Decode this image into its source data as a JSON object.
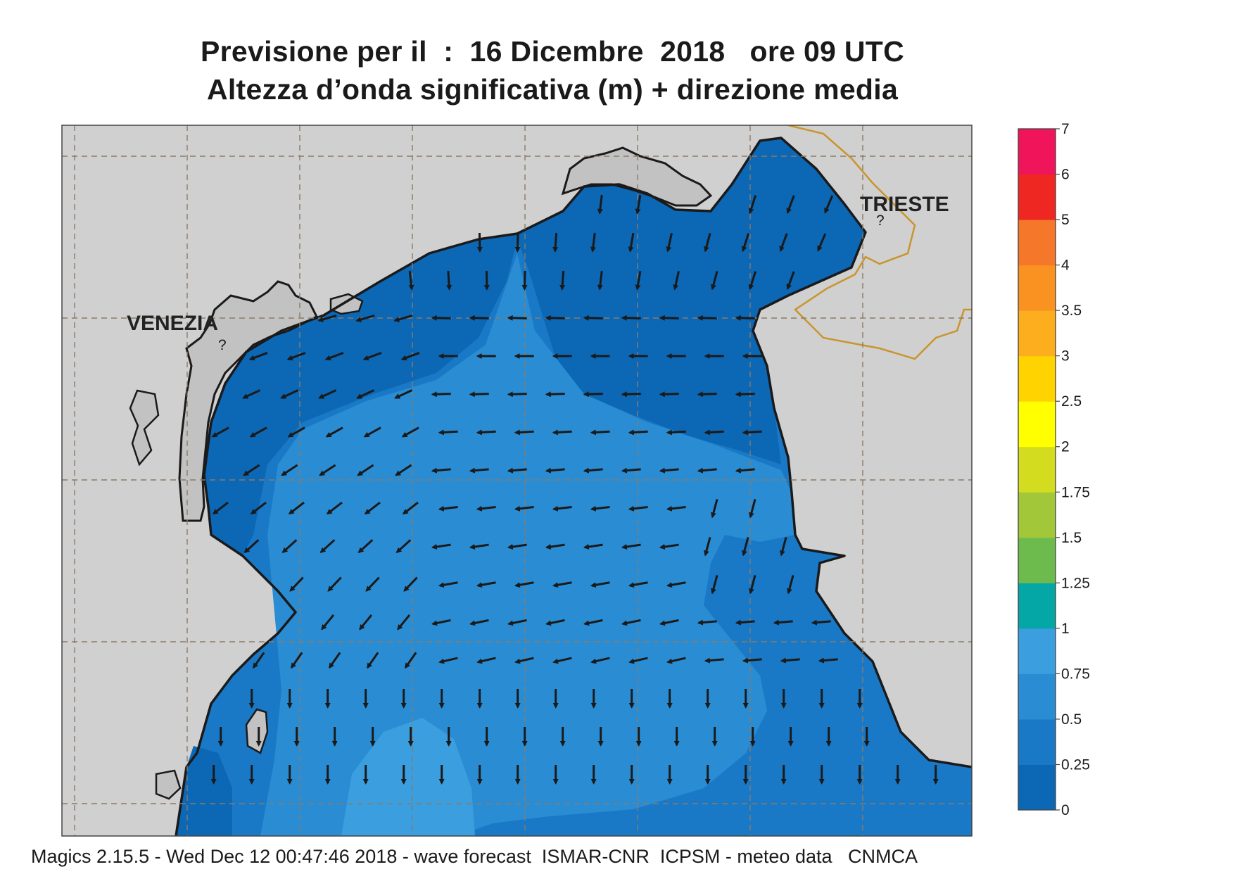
{
  "header": {
    "line1": "Previsione per il  :  16 Dicembre  2018   ore 09 UTC",
    "line2": "Altezza d’onda significativa (m) + direzione media"
  },
  "map": {
    "labels": {
      "venezia": "VENEZIA",
      "trieste": "TRIESTE"
    },
    "colors": {
      "land": "#d0d0d0",
      "sea_0": "#0c67b5",
      "sea_025": "#1a79c6",
      "sea_05": "#2a8dd4",
      "sea_075": "#3a9edf"
    }
  },
  "colorbar": {
    "ticks": [
      "7",
      "6",
      "5",
      "4",
      "3.5",
      "3",
      "2.5",
      "2",
      "1.75",
      "1.5",
      "1.25",
      "1",
      "0.75",
      "0.5",
      "0.25",
      "0"
    ],
    "colors": [
      "#0c67b5",
      "#1a79c6",
      "#2a8dd4",
      "#3a9edf",
      "#05a7a6",
      "#6dbb4d",
      "#a2c83a",
      "#d4dc1f",
      "#ffff00",
      "#ffd300",
      "#fcae1e",
      "#f99220",
      "#f4772a",
      "#ee2722",
      "#f0145a"
    ]
  },
  "footer": {
    "text": "Magics 2.15.5 - Wed Dec 12 00:47:46 2018 - wave forecast  ISMAR-CNR  ICPSM - meteo data   CNMCA"
  }
}
